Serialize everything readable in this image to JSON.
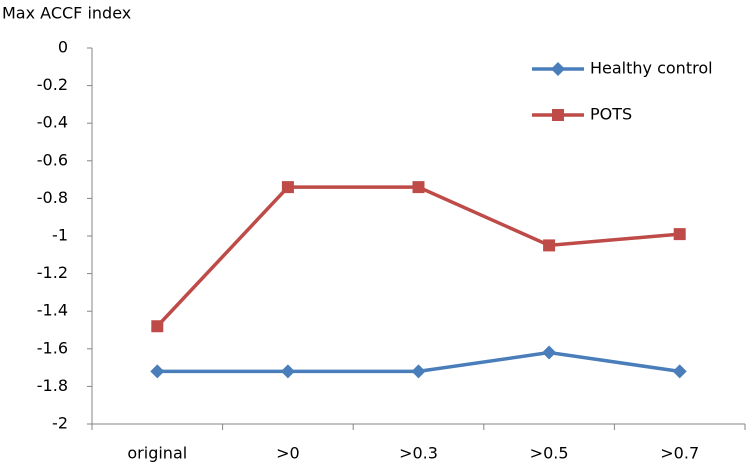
{
  "chart_data": {
    "type": "line",
    "y_label": "Max ACCF index",
    "categories": [
      "original",
      ">0",
      ">0.3",
      ">0.5",
      ">0.7"
    ],
    "series": [
      {
        "name": "Healthy control",
        "color": "#4a7ebb",
        "marker": "diamond",
        "values": [
          -1.72,
          -1.72,
          -1.72,
          -1.62,
          -1.72
        ]
      },
      {
        "name": "POTS",
        "color": "#be4b48",
        "marker": "square",
        "values": [
          -1.48,
          -0.74,
          -0.74,
          -1.05,
          -0.99
        ]
      }
    ],
    "ylim": [
      -2,
      0
    ],
    "yticks": [
      0,
      -0.2,
      -0.4,
      -0.6,
      -0.8,
      -1,
      -1.2,
      -1.4,
      -1.6,
      -1.8,
      -2
    ],
    "grid": false,
    "legend": "upper right"
  }
}
